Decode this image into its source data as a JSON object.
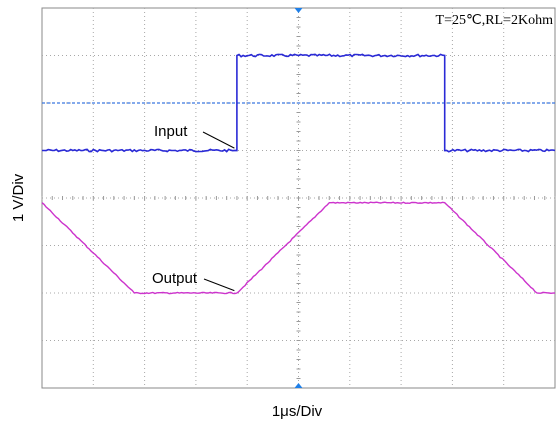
{
  "chart_data": {
    "type": "line",
    "title": "",
    "xlabel": "1μs/Div",
    "ylabel": "1 V/Div",
    "condition_text": "T=25℃,RL=2Kohm",
    "x_unit": "div",
    "y_unit": "div",
    "xlim": [
      0,
      10
    ],
    "ylim": [
      -4,
      4
    ],
    "grid": true,
    "legend": "none",
    "reference_level": 2,
    "colors": {
      "input": "#2a2ad6",
      "output": "#cc33cc",
      "reference": "#3a78e0",
      "grid": "#a8a8a8",
      "marker": "#1e7fe8"
    },
    "series": [
      {
        "name": "Input",
        "x": [
          0,
          3.8,
          3.8,
          7.85,
          7.85,
          10
        ],
        "y": [
          1.0,
          1.0,
          3.0,
          3.0,
          1.0,
          1.0
        ]
      },
      {
        "name": "Output",
        "x": [
          0,
          1.8,
          3.8,
          5.6,
          7.85,
          9.65,
          10
        ],
        "y": [
          -0.1,
          -2.0,
          -2.0,
          -0.1,
          -0.1,
          -2.0,
          -2.0
        ]
      }
    ],
    "annotations": [
      {
        "text": "Input",
        "series": "Input"
      },
      {
        "text": "Output",
        "series": "Output"
      }
    ]
  }
}
